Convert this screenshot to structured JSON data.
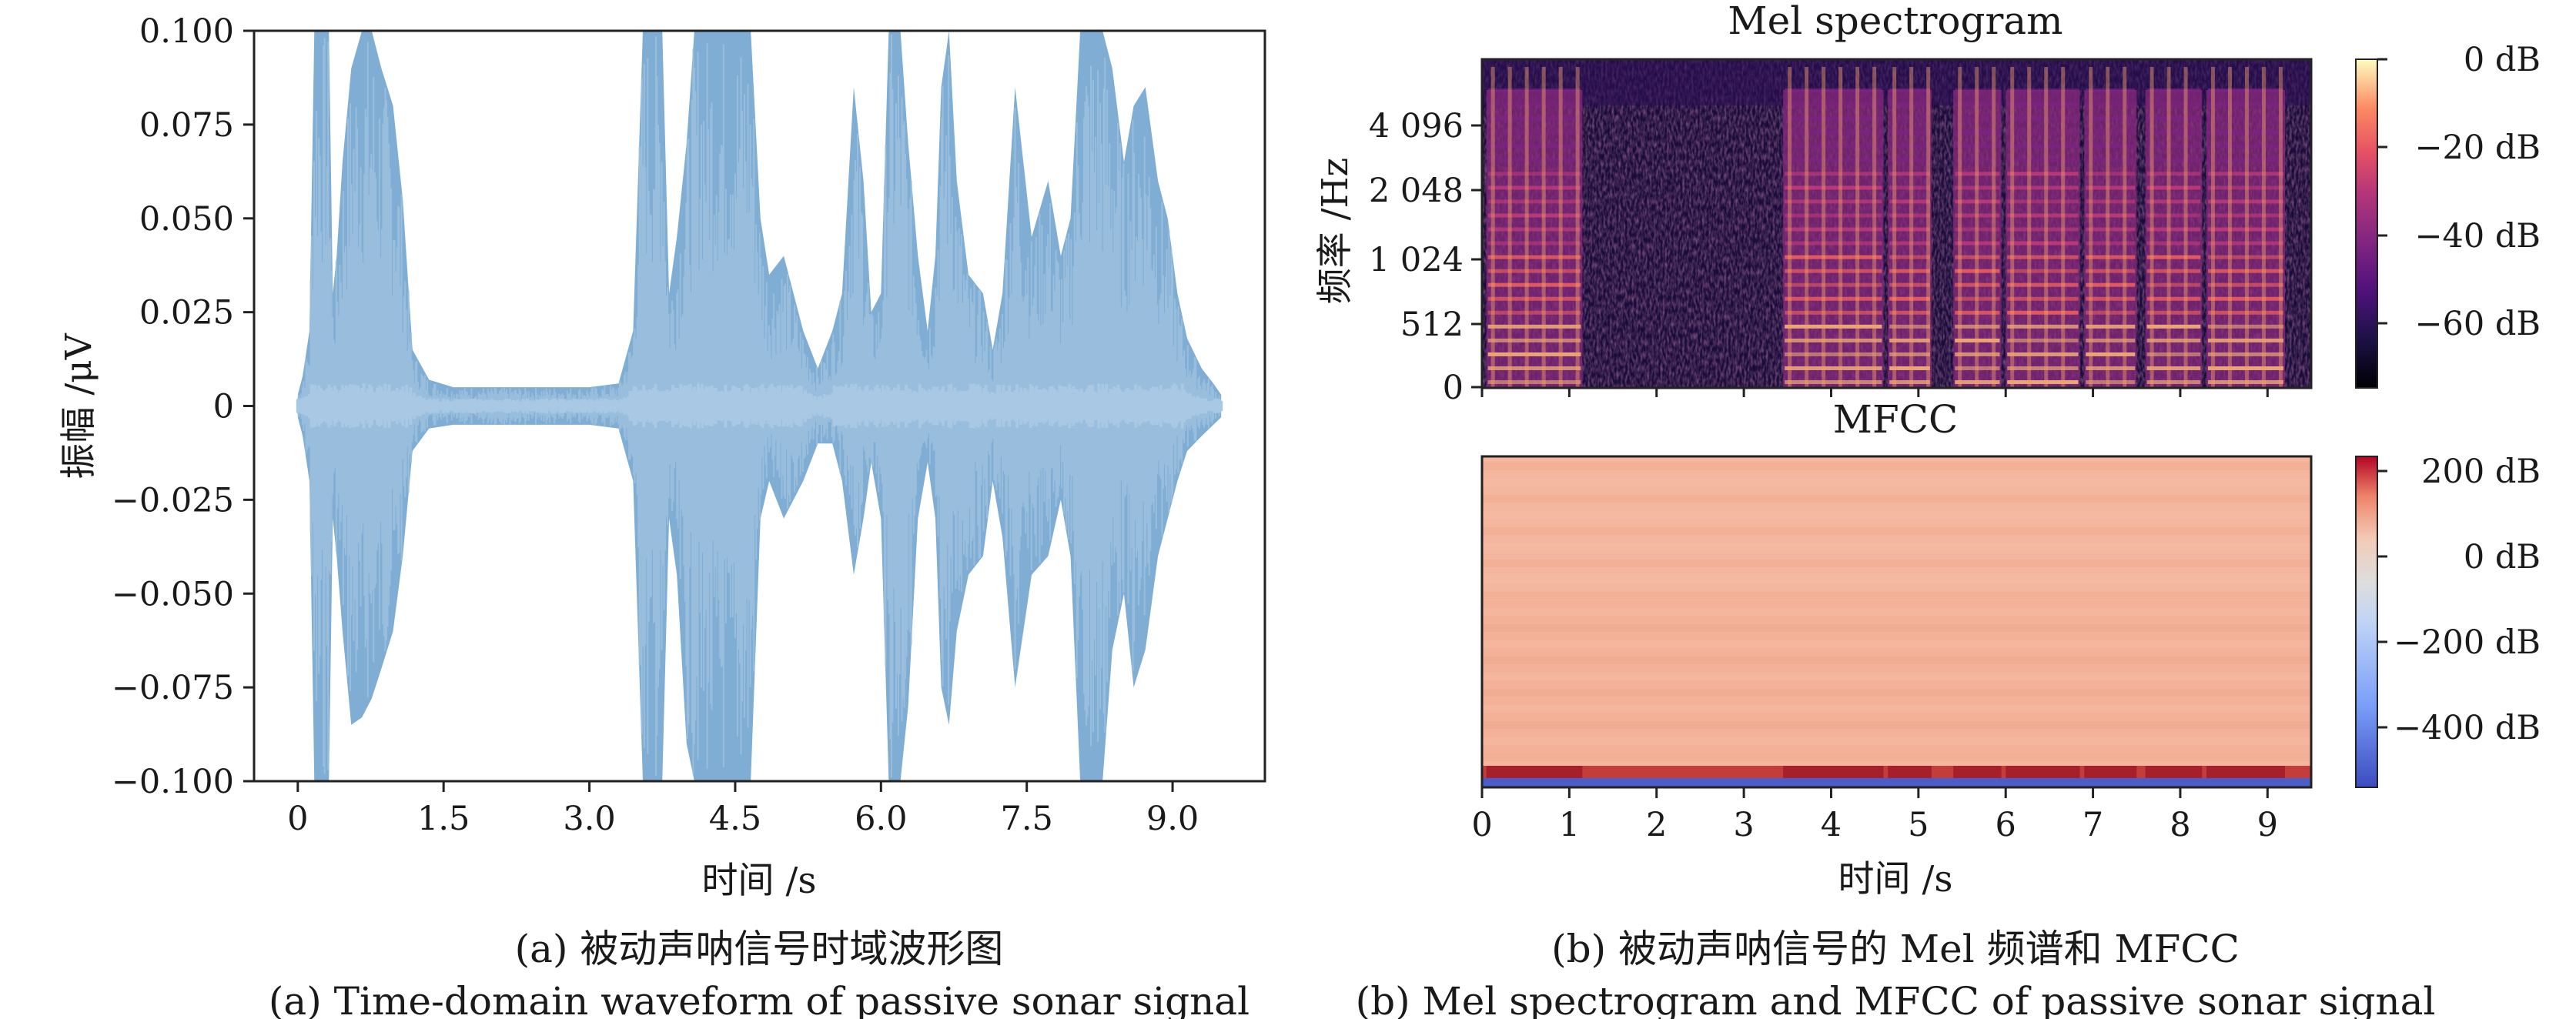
{
  "chart_data": [
    {
      "type": "area",
      "title": "",
      "xlabel": "时间 /s",
      "ylabel": "振幅 /μV",
      "xlim": [
        -0.45,
        9.95
      ],
      "ylim": [
        -0.1,
        0.1
      ],
      "x_ticks": [
        {
          "value": 0,
          "label": "0"
        },
        {
          "value": 1.5,
          "label": "1.5"
        },
        {
          "value": 3.0,
          "label": "3.0"
        },
        {
          "value": 4.5,
          "label": "4.5"
        },
        {
          "value": 6.0,
          "label": "6.0"
        },
        {
          "value": 7.5,
          "label": "7.5"
        },
        {
          "value": 9.0,
          "label": "9.0"
        }
      ],
      "y_ticks": [
        {
          "value": 0.1,
          "label": "0.100"
        },
        {
          "value": 0.075,
          "label": "0.075"
        },
        {
          "value": 0.05,
          "label": "0.050"
        },
        {
          "value": 0.025,
          "label": "0.025"
        },
        {
          "value": 0,
          "label": "0"
        },
        {
          "value": -0.025,
          "label": "−0.025"
        },
        {
          "value": -0.05,
          "label": "−0.050"
        },
        {
          "value": -0.075,
          "label": "−0.075"
        },
        {
          "value": -0.1,
          "label": "−0.100"
        }
      ],
      "color": "#7fadd4",
      "envelope_color": "#9cc0de",
      "envelope": {
        "t": [
          0,
          0.05,
          0.12,
          0.17,
          0.25,
          0.32,
          0.36,
          0.4,
          0.46,
          0.55,
          0.66,
          0.76,
          0.86,
          0.98,
          1.08,
          1.18,
          1.35,
          1.6,
          2.0,
          2.5,
          3.0,
          3.3,
          3.45,
          3.55,
          3.65,
          3.75,
          3.82,
          3.9,
          4.0,
          4.08,
          4.18,
          4.3,
          4.4,
          4.5,
          4.58,
          4.66,
          4.76,
          4.85,
          5.0,
          5.1,
          5.2,
          5.35,
          5.5,
          5.6,
          5.72,
          5.82,
          5.9,
          6.0,
          6.08,
          6.15,
          6.2,
          6.28,
          6.38,
          6.48,
          6.56,
          6.62,
          6.7,
          6.78,
          6.9,
          7.05,
          7.15,
          7.25,
          7.38,
          7.55,
          7.72,
          7.85,
          7.95,
          8.05,
          8.12,
          8.2,
          8.28,
          8.38,
          8.5,
          8.6,
          8.72,
          8.85,
          8.95,
          9.05,
          9.15,
          9.3,
          9.42,
          9.5
        ],
        "upper": [
          0.003,
          0.008,
          0.02,
          0.1,
          0.1,
          0.1,
          0.03,
          0.04,
          0.065,
          0.09,
          0.1,
          0.1,
          0.09,
          0.08,
          0.055,
          0.015,
          0.007,
          0.005,
          0.005,
          0.005,
          0.005,
          0.006,
          0.02,
          0.1,
          0.1,
          0.1,
          0.03,
          0.045,
          0.07,
          0.1,
          0.1,
          0.1,
          0.1,
          0.1,
          0.1,
          0.1,
          0.05,
          0.035,
          0.04,
          0.03,
          0.02,
          0.01,
          0.02,
          0.03,
          0.085,
          0.06,
          0.025,
          0.03,
          0.1,
          0.1,
          0.1,
          0.07,
          0.04,
          0.02,
          0.04,
          0.085,
          0.1,
          0.06,
          0.035,
          0.03,
          0.015,
          0.03,
          0.085,
          0.045,
          0.06,
          0.04,
          0.05,
          0.1,
          0.1,
          0.1,
          0.1,
          0.09,
          0.065,
          0.08,
          0.085,
          0.06,
          0.05,
          0.03,
          0.018,
          0.01,
          0.006,
          0.003
        ],
        "lower": [
          -0.003,
          -0.008,
          -0.02,
          -0.1,
          -0.1,
          -0.1,
          -0.03,
          -0.04,
          -0.06,
          -0.085,
          -0.083,
          -0.078,
          -0.07,
          -0.06,
          -0.04,
          -0.012,
          -0.006,
          -0.005,
          -0.005,
          -0.005,
          -0.005,
          -0.006,
          -0.02,
          -0.1,
          -0.1,
          -0.1,
          -0.03,
          -0.045,
          -0.09,
          -0.1,
          -0.1,
          -0.1,
          -0.1,
          -0.1,
          -0.1,
          -0.1,
          -0.03,
          -0.02,
          -0.03,
          -0.025,
          -0.02,
          -0.01,
          -0.01,
          -0.02,
          -0.045,
          -0.03,
          -0.015,
          -0.03,
          -0.1,
          -0.1,
          -0.1,
          -0.08,
          -0.03,
          -0.015,
          -0.03,
          -0.075,
          -0.085,
          -0.06,
          -0.045,
          -0.04,
          -0.02,
          -0.035,
          -0.075,
          -0.045,
          -0.04,
          -0.025,
          -0.04,
          -0.1,
          -0.1,
          -0.1,
          -0.1,
          -0.065,
          -0.05,
          -0.075,
          -0.065,
          -0.04,
          -0.03,
          -0.02,
          -0.012,
          -0.008,
          -0.005,
          -0.003
        ]
      }
    },
    {
      "type": "heatmap",
      "title": "Mel spectrogram",
      "xlabel": "",
      "ylabel": "频率 /Hz",
      "xlim": [
        0,
        9.5
      ],
      "colormap": "magma",
      "y_ticks": [
        "0",
        "512",
        "1 024",
        "2 048",
        "4 096"
      ],
      "x_ticks": [
        "0",
        "1",
        "2",
        "3",
        "4",
        "5",
        "6",
        "7",
        "8",
        "9"
      ],
      "colorbar": {
        "ticks": [
          "0 dB",
          "−20 dB",
          "−40 dB",
          "−60 dB"
        ],
        "range_db": [
          -73,
          0
        ]
      },
      "active_segments_s": [
        [
          0.05,
          1.15
        ],
        [
          3.45,
          4.6
        ],
        [
          4.65,
          5.15
        ],
        [
          5.4,
          5.95
        ],
        [
          6.0,
          6.85
        ],
        [
          6.9,
          7.5
        ],
        [
          7.6,
          8.25
        ],
        [
          8.3,
          9.2
        ]
      ]
    },
    {
      "type": "heatmap",
      "title": "MFCC",
      "xlabel": "时间 /s",
      "ylabel": "",
      "xlim": [
        0,
        9.5
      ],
      "colormap": "coolwarm",
      "x_ticks": [
        "0",
        "1",
        "2",
        "3",
        "4",
        "5",
        "6",
        "7",
        "8",
        "9"
      ],
      "colorbar": {
        "ticks": [
          "200 dB",
          "0 dB",
          "−200 dB",
          "−400 dB"
        ],
        "range_db": [
          -530,
          240
        ]
      }
    }
  ],
  "captions": {
    "left_cn": "(a) 被动声呐信号时域波形图",
    "left_en": "(a) Time-domain waveform of passive sonar signal",
    "right_cn": "(b) 被动声呐信号的 Mel 频谱和 MFCC",
    "right_en": "(b) Mel spectrogram and MFCC of passive sonar signal"
  }
}
